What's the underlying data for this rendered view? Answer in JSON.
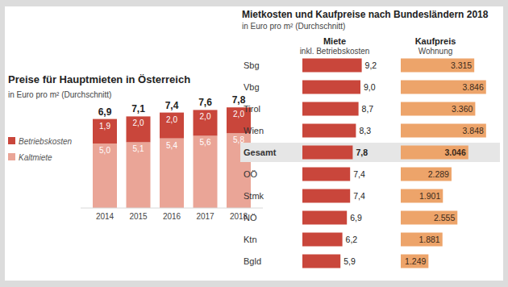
{
  "chart_data": [
    {
      "type": "bar",
      "title": "Preise für Hauptmieten in Österreich",
      "subtitle": "in Euro pro m² (Durchschnitt)",
      "categories": [
        "2014",
        "2015",
        "2016",
        "2017",
        "2018"
      ],
      "stacked": true,
      "data_labels": true,
      "legend": "left",
      "tick_labels": "x",
      "ylim": [
        0,
        8
      ],
      "series": [
        {
          "name": "Kaltmiete",
          "color": "#eaa597",
          "values": [
            5.0,
            5.1,
            5.4,
            5.6,
            5.8
          ],
          "value_labels": [
            "5,0",
            "5,1",
            "5,4",
            "5,6",
            "5,8"
          ]
        },
        {
          "name": "Betriebskosten",
          "color": "#c9463b",
          "values": [
            1.9,
            2.0,
            2.0,
            2.0,
            2.0
          ],
          "value_labels": [
            "1,9",
            "2,0",
            "2,0",
            "2,0",
            "2,0"
          ]
        }
      ],
      "totals": [
        6.9,
        7.1,
        7.4,
        7.6,
        7.8
      ],
      "total_labels": [
        "6,9",
        "7,1",
        "7,4",
        "7,6",
        "7,8"
      ]
    },
    {
      "type": "bar",
      "orientation": "horizontal",
      "title": "Mietkosten und Kaufpreise nach Bundesländern 2018",
      "subtitle": "in Euro pro m² (Durchschnitt)",
      "categories": [
        "Sbg",
        "Vbg",
        "Tirol",
        "Wien",
        "Gesamt",
        "OÖ",
        "Stmk",
        "NÖ",
        "Ktn",
        "Bgld"
      ],
      "data_labels": true,
      "tick_labels": "y",
      "ylim": [
        0,
        10
      ],
      "y2lim": [
        0,
        4000
      ],
      "series": [
        {
          "name": "Miete",
          "subtitle": "inkl. Betriebskosten",
          "color": "#c9463b",
          "values": [
            9.2,
            9.0,
            8.7,
            8.3,
            7.8,
            7.4,
            7.4,
            6.9,
            6.2,
            5.9
          ],
          "value_labels": [
            "9,2",
            "9,0",
            "8,7",
            "8,3",
            "7,8",
            "7,4",
            "7,4",
            "6,9",
            "6,2",
            "5,9"
          ]
        },
        {
          "name": "Kaufpreis",
          "subtitle": "Wohnung",
          "color": "#eda46a",
          "axis": "y2",
          "values": [
            3315,
            3846,
            3360,
            3848,
            3046,
            2289,
            1901,
            2555,
            1881,
            1249
          ],
          "value_labels": [
            "3.315",
            "3.846",
            "3.360",
            "3.848",
            "3.046",
            "2.289",
            "1.901",
            "2.555",
            "1.881",
            "1.249"
          ]
        }
      ]
    }
  ]
}
